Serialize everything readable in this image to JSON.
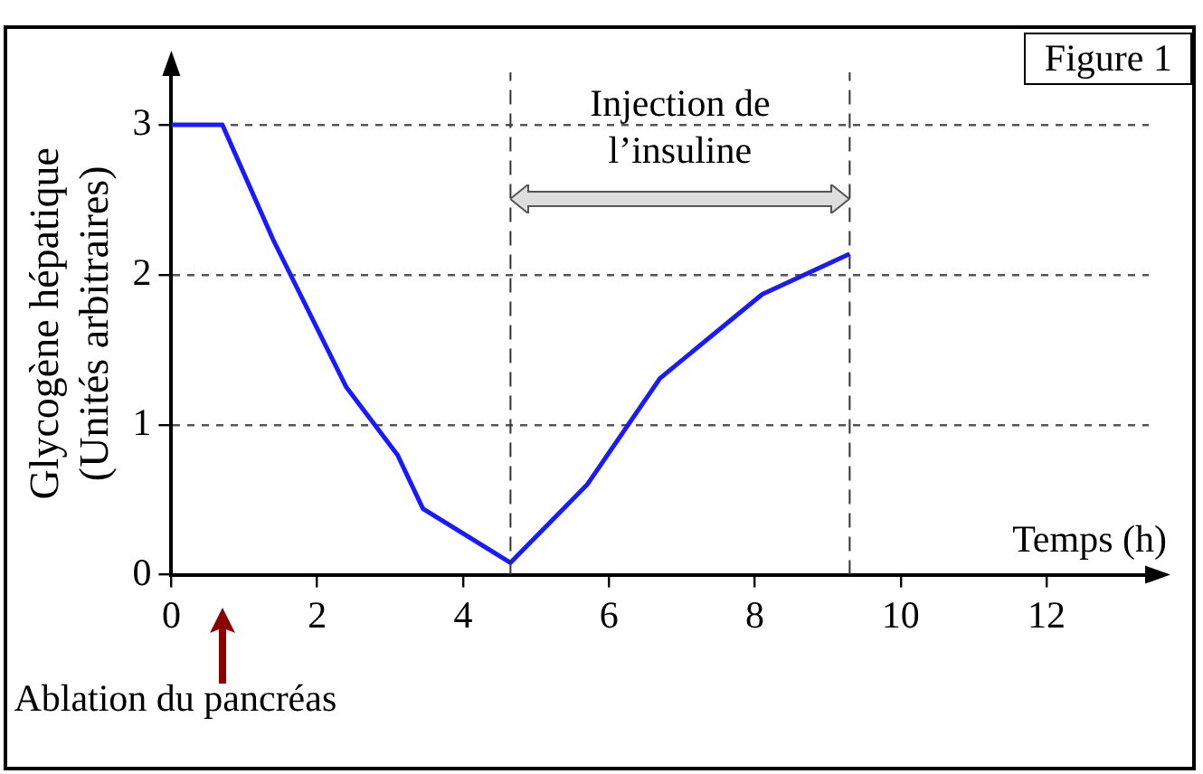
{
  "chart_data": {
    "type": "line",
    "xlabel": "Temps (h)",
    "ylabel": "Glycogène hépatique\n(Unités arbitraires)",
    "x": [
      0,
      0.7,
      1.4,
      2.4,
      3.1,
      3.45,
      4.65,
      5.7,
      6.7,
      8.1,
      9.3
    ],
    "series": [
      {
        "color": "#1a1aff",
        "values": [
          3,
          3,
          2.23,
          1.25,
          0.8,
          0.44,
          0.08,
          0.6,
          1.31,
          1.87,
          2.14
        ]
      }
    ],
    "xlim": [
      0,
      13.4
    ],
    "ylim": [
      0,
      3.35
    ],
    "xticks": [
      0,
      2,
      4,
      6,
      8,
      10,
      12
    ],
    "yticks": [
      0,
      1,
      2,
      3
    ],
    "grid": "y",
    "marker": "none",
    "line_style": "solid",
    "legend": false,
    "ref_lines": [
      {
        "axis": "x",
        "value": 4.65,
        "line_style": "dashed"
      },
      {
        "axis": "x",
        "value": 9.3,
        "line_style": "dashed"
      }
    ],
    "annotations": [
      "Figure 1",
      "Injection de\nl’insuline",
      "Ablation du pancréas"
    ]
  }
}
